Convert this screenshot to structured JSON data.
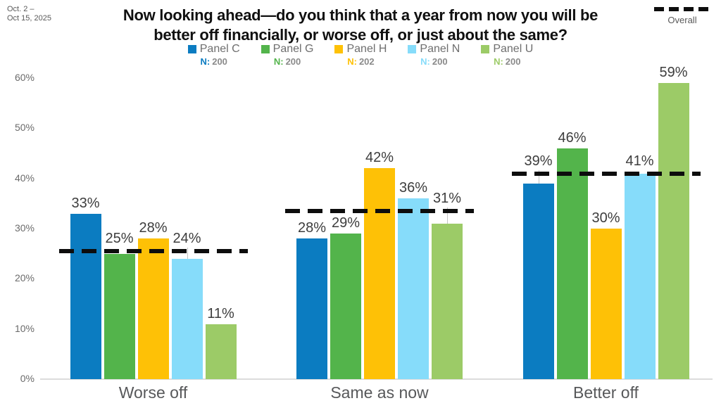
{
  "header": {
    "date_line1": "Oct. 2 –",
    "date_line2": "Oct 15, 2025",
    "title_line1": "Now looking ahead—do you think that a year from now you will be",
    "title_line2": "better off financially, or worse off, or just about the same?"
  },
  "chart_data": {
    "type": "bar",
    "title": "Now looking ahead—do you think that a year from now you will be better off financially, or worse off, or just about the same?",
    "date_range": "Oct. 2 – Oct 15, 2025",
    "categories": [
      "Worse off",
      "Same as now",
      "Better off"
    ],
    "series": [
      {
        "name": "Panel C",
        "n": "200",
        "color": "#0b7cc1",
        "values": [
          33,
          28,
          39
        ]
      },
      {
        "name": "Panel G",
        "n": "200",
        "color": "#53b44b",
        "values": [
          25,
          29,
          46
        ]
      },
      {
        "name": "Panel H",
        "n": "202",
        "color": "#fec106",
        "values": [
          28,
          42,
          30
        ]
      },
      {
        "name": "Panel N",
        "n": "200",
        "color": "#86dcfa",
        "values": [
          24,
          36,
          41
        ]
      },
      {
        "name": "Panel U",
        "n": "200",
        "color": "#9ccb67",
        "values": [
          11,
          31,
          59
        ]
      }
    ],
    "n_prefix": "N:",
    "overall": {
      "label": "Overall",
      "values": [
        25.5,
        33.5,
        41
      ],
      "color": "#0d0d0d"
    },
    "y_ticks": [
      0,
      10,
      20,
      30,
      40,
      50,
      60
    ],
    "y_tick_suffix": "%",
    "value_suffix": "%",
    "ylim": [
      0,
      60
    ],
    "grid": false,
    "legend_position": "top"
  }
}
